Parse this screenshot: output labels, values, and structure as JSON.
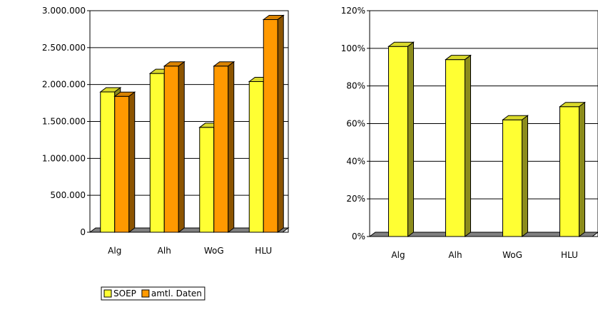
{
  "chart_data": [
    {
      "type": "bar",
      "categories": [
        "Alg",
        "Alh",
        "WoG",
        "HLU"
      ],
      "series": [
        {
          "name": "SOEP",
          "values": [
            1900000,
            2150000,
            1420000,
            2040000
          ],
          "color": "#ffff33"
        },
        {
          "name": "amtl. Daten",
          "values": [
            1840000,
            2250000,
            2250000,
            2880000
          ],
          "color": "#ff9900"
        }
      ],
      "ylim": [
        0,
        3000000
      ],
      "yticks": [
        0,
        500000,
        1000000,
        1500000,
        2000000,
        2500000,
        3000000
      ],
      "ytick_labels": [
        "0",
        "500.000",
        "1.000.000",
        "1.500.000",
        "2.000.000",
        "2.500.000",
        "3.000.000"
      ],
      "grid": true,
      "three_d": true
    },
    {
      "type": "bar",
      "categories": [
        "Alg",
        "Alh",
        "WoG",
        "HLU"
      ],
      "series": [
        {
          "values": [
            101,
            94,
            62,
            69
          ],
          "color": "#ffff33"
        }
      ],
      "ylim": [
        0,
        120
      ],
      "yticks": [
        0,
        20,
        40,
        60,
        80,
        100,
        120
      ],
      "ytick_labels": [
        "0%",
        "20%",
        "40%",
        "60%",
        "80%",
        "100%",
        "120%"
      ],
      "grid": true,
      "three_d": true
    }
  ],
  "legend": {
    "position": "bottom-left",
    "entries": [
      {
        "label": "SOEP",
        "color": "#ffff33"
      },
      {
        "label": "amtl. Daten",
        "color": "#ff9900"
      }
    ]
  }
}
